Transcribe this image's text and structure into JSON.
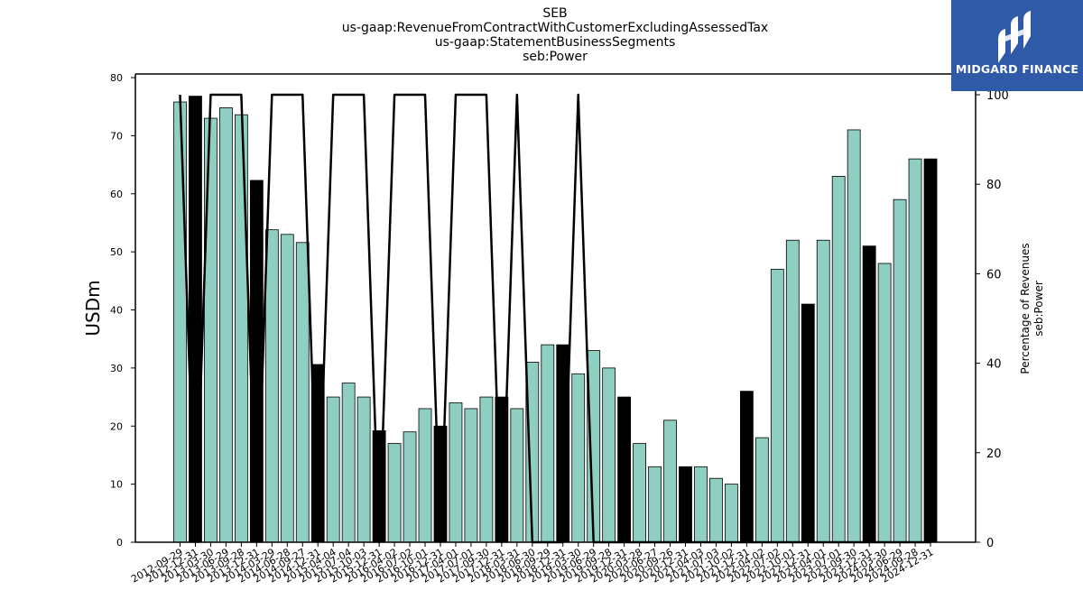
{
  "chart_data": {
    "type": "bar",
    "title_lines": [
      "SEB",
      "us-gaap:RevenueFromContractWithCustomerExcludingAssessedTax",
      "us-gaap:StatementBusinessSegments",
      "seb:Power"
    ],
    "ylabel": "USDm",
    "y2label_lines": [
      "Percentage of Revenues",
      "seb:Power"
    ],
    "ylim": [
      0,
      80
    ],
    "y2lim": [
      0,
      100
    ],
    "yticks": [
      "0",
      "10",
      "20",
      "30",
      "40",
      "50",
      "60",
      "70",
      "80"
    ],
    "y2ticks": [
      "0",
      "20",
      "40",
      "60",
      "80",
      "100"
    ],
    "categories": [
      "2012-09-29",
      "2012-12-31",
      "2013-03-30",
      "2013-06-29",
      "2013-09-28",
      "2013-12-31",
      "2014-03-29",
      "2014-06-28",
      "2014-09-27",
      "2014-12-31",
      "2015-04-04",
      "2015-07-04",
      "2015-10-03",
      "2015-12-31",
      "2016-04-02",
      "2016-07-02",
      "2016-10-01",
      "2016-12-31",
      "2017-04-01",
      "2017-07-01",
      "2017-09-30",
      "2017-12-31",
      "2018-03-31",
      "2018-06-30",
      "2018-09-29",
      "2018-12-31",
      "2019-03-30",
      "2019-06-29",
      "2019-09-28",
      "2019-12-31",
      "2020-03-28",
      "2020-06-27",
      "2020-09-26",
      "2020-12-31",
      "2021-04-03",
      "2021-07-03",
      "2021-10-02",
      "2021-12-31",
      "2022-04-02",
      "2022-07-02",
      "2022-10-01",
      "2022-12-31",
      "2023-04-01",
      "2023-07-01",
      "2023-09-30",
      "2023-12-31",
      "2024-03-30",
      "2024-06-29",
      "2024-09-28",
      "2024-12-31"
    ],
    "series": [
      {
        "values": [
          75.8,
          76.8,
          73,
          74.8,
          73.6,
          62.3,
          53.8,
          53,
          51.6,
          30.6,
          25,
          27.4,
          25,
          19.2,
          17,
          19,
          23,
          20,
          24,
          23,
          25,
          25,
          23,
          31,
          34,
          34,
          29,
          33,
          30,
          25,
          17,
          13,
          21,
          13,
          13,
          11,
          10,
          26,
          18,
          47,
          52,
          41,
          52,
          63,
          71,
          51,
          48,
          59,
          66,
          66
        ]
      },
      {
        "values": [
          100,
          0,
          100,
          100,
          100,
          0,
          100,
          100,
          100,
          0,
          100,
          100,
          100,
          0,
          100,
          100,
          100,
          0,
          100,
          100,
          100,
          0,
          100,
          0,
          0,
          0,
          100,
          0,
          0,
          0,
          0,
          0,
          0,
          0,
          0,
          0,
          0,
          0,
          0,
          0,
          0,
          0,
          0,
          0,
          0,
          0,
          0,
          0,
          0,
          0
        ]
      }
    ],
    "colors": {
      "quarter_bar": "#8ecfc2",
      "annual_bar": "#000000",
      "line": "#000000"
    },
    "logo_text": "MIDGARD FINANCE"
  }
}
